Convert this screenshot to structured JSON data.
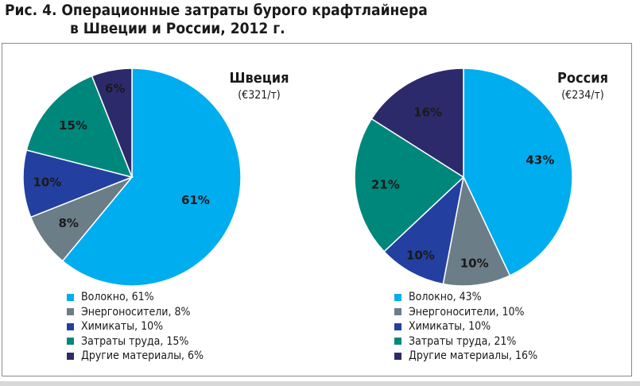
{
  "title": {
    "line1": "Рис. 4. Операционные затраты бурого крафтлайнера",
    "line2": "в Швеции и России, 2012 г."
  },
  "colors": {
    "fiber": "#00adef",
    "energy": "#6b7d87",
    "chemicals": "#2340a0",
    "labor": "#00877c",
    "other": "#2d2a6b"
  },
  "chart_data": [
    {
      "type": "pie",
      "title": "Швеция",
      "subtitle": "(€321/т)",
      "slices": [
        {
          "key": "fiber",
          "label": "Волокно",
          "value": 61,
          "value_label": "61%",
          "legend": "Волокно, 61%"
        },
        {
          "key": "energy",
          "label": "Энергоносители",
          "value": 8,
          "value_label": "8%",
          "legend": "Энергоносители, 8%"
        },
        {
          "key": "chemicals",
          "label": "Химикаты",
          "value": 10,
          "value_label": "10%",
          "legend": "Химикаты, 10%"
        },
        {
          "key": "labor",
          "label": "Затраты труда",
          "value": 15,
          "value_label": "15%",
          "legend": "Затраты труда, 15%"
        },
        {
          "key": "other",
          "label": "Другие материалы",
          "value": 6,
          "value_label": "6%",
          "legend": "Другие материалы, 6%"
        }
      ]
    },
    {
      "type": "pie",
      "title": "Россия",
      "subtitle": "(€234/т)",
      "slices": [
        {
          "key": "fiber",
          "label": "Волокно",
          "value": 43,
          "value_label": "43%",
          "legend": "Волокно, 43%"
        },
        {
          "key": "energy",
          "label": "Энергоносители",
          "value": 10,
          "value_label": "10%",
          "legend": "Энергоносители, 10%"
        },
        {
          "key": "chemicals",
          "label": "Химикаты",
          "value": 10,
          "value_label": "10%",
          "legend": "Химикаты, 10%"
        },
        {
          "key": "labor",
          "label": "Затраты труда",
          "value": 21,
          "value_label": "21%",
          "legend": "Затраты труда, 21%"
        },
        {
          "key": "other",
          "label": "Другие материалы",
          "value": 16,
          "value_label": "16%",
          "legend": "Другие материалы, 16%"
        }
      ]
    }
  ]
}
